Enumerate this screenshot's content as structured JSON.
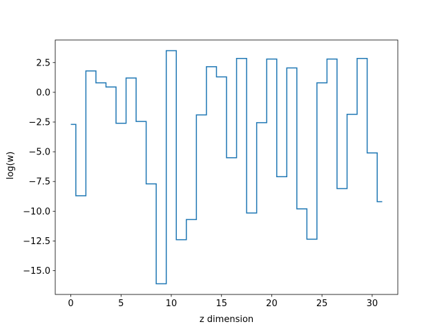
{
  "chart_data": {
    "type": "line",
    "drawstyle": "steps-mid",
    "xlabel": "z dimension",
    "ylabel": "log(w)",
    "xlim": [
      -1.55,
      32.55
    ],
    "ylim": [
      -17.0,
      4.4
    ],
    "xticks": [
      0,
      5,
      10,
      15,
      20,
      25,
      30
    ],
    "yticks": [
      2.5,
      0.0,
      -2.5,
      -5.0,
      -7.5,
      -10.0,
      -12.5,
      -15.0
    ],
    "ytick_labels": [
      "2.5",
      "0.0",
      "−2.5",
      "−5.0",
      "−7.5",
      "−10.0",
      "−12.5",
      "−15.0"
    ],
    "grid": false,
    "series": [
      {
        "color": "#1f77b4",
        "x": [
          0,
          1,
          2,
          3,
          4,
          5,
          6,
          7,
          8,
          9,
          10,
          11,
          12,
          13,
          14,
          15,
          16,
          17,
          18,
          19,
          20,
          21,
          22,
          23,
          24,
          25,
          26,
          27,
          28,
          29,
          30,
          31
        ],
        "values": [
          -2.7,
          -8.7,
          1.8,
          0.8,
          0.45,
          -2.6,
          1.2,
          -2.45,
          -7.7,
          -16.1,
          3.5,
          -12.4,
          -10.7,
          -1.9,
          2.15,
          1.3,
          -5.5,
          2.85,
          -10.15,
          -2.55,
          2.8,
          -7.1,
          2.05,
          -9.8,
          -12.35,
          0.8,
          2.8,
          -8.1,
          -1.85,
          2.85,
          -5.1,
          -9.2
        ]
      }
    ]
  }
}
